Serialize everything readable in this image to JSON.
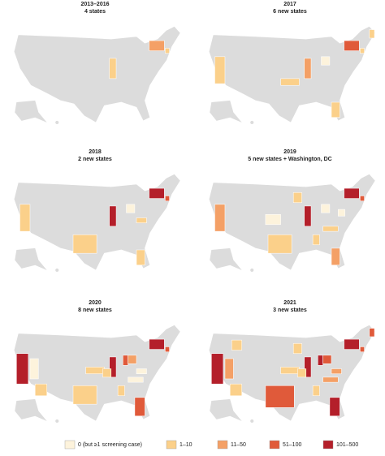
{
  "panels": [
    {
      "title": "2013–2016",
      "subtitle": "4 states"
    },
    {
      "title": "2017",
      "subtitle": "6 new states"
    },
    {
      "title": "2018",
      "subtitle": "2 new states"
    },
    {
      "title": "2019",
      "subtitle": "5 new states + Washington, DC"
    },
    {
      "title": "2020",
      "subtitle": "8 new states"
    },
    {
      "title": "2021",
      "subtitle": "3 new states"
    }
  ],
  "legend": [
    {
      "label": "0 (but ≥1 screening case)",
      "color": "#fdf3dc"
    },
    {
      "label": "1–10",
      "color": "#fbd08a"
    },
    {
      "label": "11–50",
      "color": "#f4a066"
    },
    {
      "label": "51–100",
      "color": "#e05a3a"
    },
    {
      "label": "101–500",
      "color": "#b41f2a"
    }
  ]
}
